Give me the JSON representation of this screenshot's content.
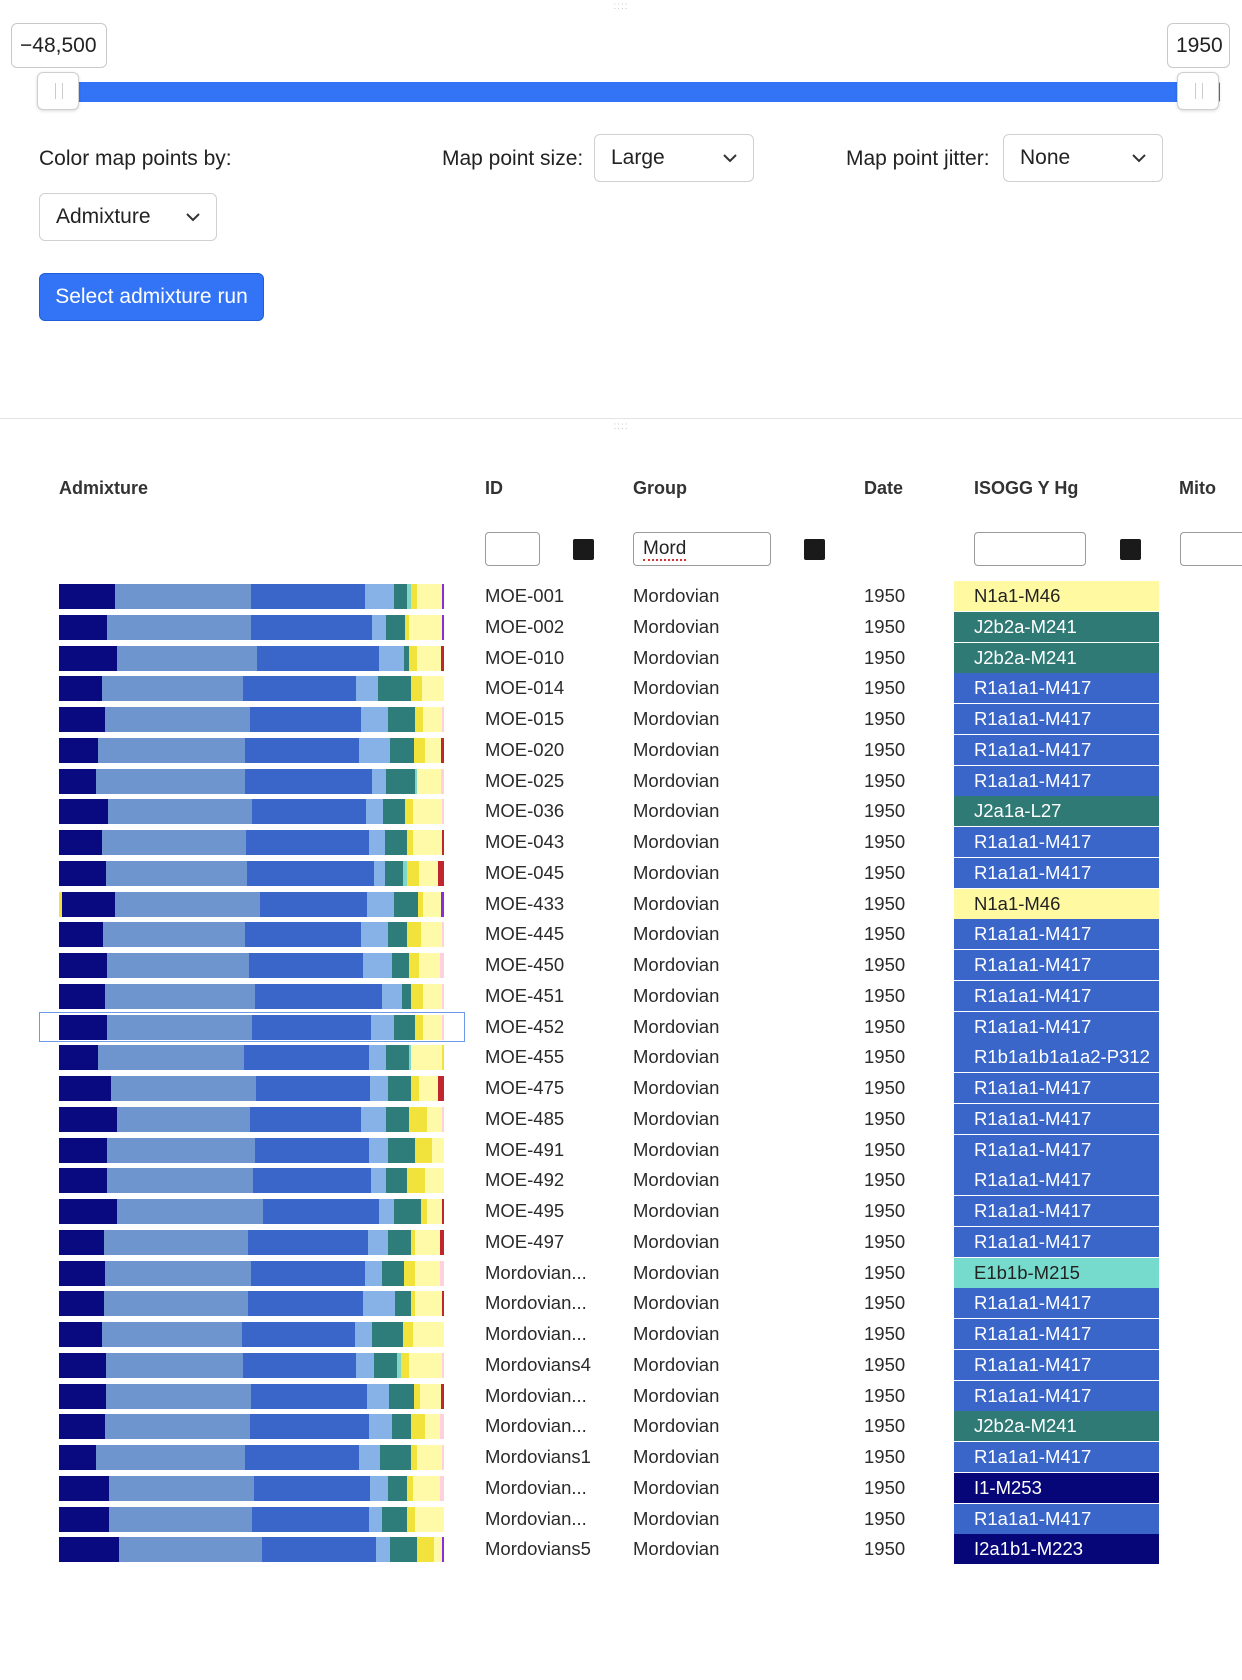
{
  "range": {
    "min_label": "−48,500",
    "max_label": "1950"
  },
  "controls": {
    "color_by_label": "Color map points by:",
    "color_by_value": "Admixture",
    "point_size_label": "Map point size:",
    "point_size_value": "Large",
    "jitter_label": "Map point jitter:",
    "jitter_value": "None",
    "admix_button": "Select admixture run"
  },
  "table": {
    "headers": {
      "admixture": "Admixture",
      "id": "ID",
      "group": "Group",
      "date": "Date",
      "ysog": "ISOGG Y Hg",
      "mito": "Mito"
    },
    "filters": {
      "id": "",
      "group": "Mord",
      "ysog": "",
      "mito": ""
    },
    "colors": {
      "c1": "#0a0a80",
      "c2": "#6f95cf",
      "c3": "#3a66c9",
      "c4": "#86b2e7",
      "c5": "#2e7d7a",
      "c6": "#f2e33c",
      "c7": "#fffaa8",
      "c8": "#ffd1dc",
      "c9": "#c0262e",
      "c10": "#8a2be2",
      "c11": "#7fd6c8"
    },
    "hg_colors": {
      "N1a1-M46": "#fffaa2",
      "J2b2a-M241": "#2f7a74",
      "J2a1a-L27": "#2f7a74",
      "R1a1a1-M417": "#3a66c9",
      "R1b1a1b1a1a2-P312": "#3a66c9",
      "E1b1b-M215": "#76dbcd",
      "I1-M253": "#060678",
      "I2a1b1-M223": "#060678"
    },
    "rows": [
      {
        "id": "MOE-001",
        "group": "Mordovian",
        "date": "1950",
        "hg": "N1a1-M46"
      },
      {
        "id": "MOE-002",
        "group": "Mordovian",
        "date": "1950",
        "hg": "J2b2a-M241"
      },
      {
        "id": "MOE-010",
        "group": "Mordovian",
        "date": "1950",
        "hg": "J2b2a-M241"
      },
      {
        "id": "MOE-014",
        "group": "Mordovian",
        "date": "1950",
        "hg": "R1a1a1-M417"
      },
      {
        "id": "MOE-015",
        "group": "Mordovian",
        "date": "1950",
        "hg": "R1a1a1-M417"
      },
      {
        "id": "MOE-020",
        "group": "Mordovian",
        "date": "1950",
        "hg": "R1a1a1-M417"
      },
      {
        "id": "MOE-025",
        "group": "Mordovian",
        "date": "1950",
        "hg": "R1a1a1-M417"
      },
      {
        "id": "MOE-036",
        "group": "Mordovian",
        "date": "1950",
        "hg": "J2a1a-L27"
      },
      {
        "id": "MOE-043",
        "group": "Mordovian",
        "date": "1950",
        "hg": "R1a1a1-M417"
      },
      {
        "id": "MOE-045",
        "group": "Mordovian",
        "date": "1950",
        "hg": "R1a1a1-M417"
      },
      {
        "id": "MOE-433",
        "group": "Mordovian",
        "date": "1950",
        "hg": "N1a1-M46"
      },
      {
        "id": "MOE-445",
        "group": "Mordovian",
        "date": "1950",
        "hg": "R1a1a1-M417"
      },
      {
        "id": "MOE-450",
        "group": "Mordovian",
        "date": "1950",
        "hg": "R1a1a1-M417"
      },
      {
        "id": "MOE-451",
        "group": "Mordovian",
        "date": "1950",
        "hg": "R1a1a1-M417"
      },
      {
        "id": "MOE-452",
        "group": "Mordovian",
        "date": "1950",
        "hg": "R1a1a1-M417"
      },
      {
        "id": "MOE-455",
        "group": "Mordovian",
        "date": "1950",
        "hg": "R1b1a1b1a1a2-P312"
      },
      {
        "id": "MOE-475",
        "group": "Mordovian",
        "date": "1950",
        "hg": "R1a1a1-M417"
      },
      {
        "id": "MOE-485",
        "group": "Mordovian",
        "date": "1950",
        "hg": "R1a1a1-M417"
      },
      {
        "id": "MOE-491",
        "group": "Mordovian",
        "date": "1950",
        "hg": "R1a1a1-M417"
      },
      {
        "id": "MOE-492",
        "group": "Mordovian",
        "date": "1950",
        "hg": "R1a1a1-M417"
      },
      {
        "id": "MOE-495",
        "group": "Mordovian",
        "date": "1950",
        "hg": "R1a1a1-M417"
      },
      {
        "id": "MOE-497",
        "group": "Mordovian",
        "date": "1950",
        "hg": "R1a1a1-M417"
      },
      {
        "id": "Mordovian...",
        "group": "Mordovian",
        "date": "1950",
        "hg": "E1b1b-M215"
      },
      {
        "id": "Mordovian...",
        "group": "Mordovian",
        "date": "1950",
        "hg": "R1a1a1-M417"
      },
      {
        "id": "Mordovian...",
        "group": "Mordovian",
        "date": "1950",
        "hg": "R1a1a1-M417"
      },
      {
        "id": "Mordovians4",
        "group": "Mordovian",
        "date": "1950",
        "hg": "R1a1a1-M417"
      },
      {
        "id": "Mordovian...",
        "group": "Mordovian",
        "date": "1950",
        "hg": "R1a1a1-M417"
      },
      {
        "id": "Mordovian...",
        "group": "Mordovian",
        "date": "1950",
        "hg": "J2b2a-M241"
      },
      {
        "id": "Mordovians1",
        "group": "Mordovian",
        "date": "1950",
        "hg": "R1a1a1-M417"
      },
      {
        "id": "Mordovian...",
        "group": "Mordovian",
        "date": "1950",
        "hg": "I1-M253"
      },
      {
        "id": "Mordovian...",
        "group": "Mordovian",
        "date": "1950",
        "hg": "R1a1a1-M417"
      },
      {
        "id": "Mordovians5",
        "group": "Mordovian",
        "date": "1950",
        "hg": "I2a1b1-M223"
      }
    ],
    "admixture": [
      [
        [
          14.5,
          "c1"
        ],
        [
          35,
          "c2"
        ],
        [
          29.5,
          "c3"
        ],
        [
          7.5,
          "c4"
        ],
        [
          3.5,
          "c5"
        ],
        [
          1,
          "c11"
        ],
        [
          1.5,
          "c6"
        ],
        [
          6.5,
          "c7"
        ],
        [
          0.5,
          "c10"
        ]
      ],
      [
        [
          12.5,
          "c1"
        ],
        [
          37,
          "c2"
        ],
        [
          31.5,
          "c3"
        ],
        [
          3.5,
          "c4"
        ],
        [
          5,
          "c5"
        ],
        [
          1,
          "c6"
        ],
        [
          8.5,
          "c7"
        ],
        [
          0.5,
          "c10"
        ]
      ],
      [
        [
          13.5,
          "c1"
        ],
        [
          33,
          "c2"
        ],
        [
          28.5,
          "c3"
        ],
        [
          6,
          "c4"
        ],
        [
          1,
          "c5"
        ],
        [
          2,
          "c6"
        ],
        [
          5.5,
          "c7"
        ],
        [
          0.8,
          "c9"
        ]
      ],
      [
        [
          11,
          "c1"
        ],
        [
          36,
          "c2"
        ],
        [
          29,
          "c3"
        ],
        [
          5.5,
          "c4"
        ],
        [
          8.5,
          "c5"
        ],
        [
          3,
          "c6"
        ],
        [
          5.5,
          "c7"
        ]
      ],
      [
        [
          12,
          "c1"
        ],
        [
          37.5,
          "c2"
        ],
        [
          29,
          "c3"
        ],
        [
          7,
          "c4"
        ],
        [
          7,
          "c5"
        ],
        [
          2,
          "c6"
        ],
        [
          5,
          "c7"
        ],
        [
          0.5,
          "c8"
        ]
      ],
      [
        [
          10,
          "c1"
        ],
        [
          38,
          "c2"
        ],
        [
          29.5,
          "c3"
        ],
        [
          8,
          "c4"
        ],
        [
          6,
          "c5"
        ],
        [
          3,
          "c6"
        ],
        [
          4,
          "c7"
        ],
        [
          0.8,
          "c9"
        ]
      ],
      [
        [
          9.5,
          "c1"
        ],
        [
          38,
          "c2"
        ],
        [
          32.5,
          "c3"
        ],
        [
          3.5,
          "c4"
        ],
        [
          7.5,
          "c5"
        ],
        [
          0.5,
          "c11"
        ],
        [
          6,
          "c7"
        ],
        [
          0.8,
          "c8"
        ]
      ],
      [
        [
          12.5,
          "c1"
        ],
        [
          37,
          "c2"
        ],
        [
          29,
          "c3"
        ],
        [
          4.5,
          "c4"
        ],
        [
          5.5,
          "c5"
        ],
        [
          2,
          "c6"
        ],
        [
          7.5,
          "c7"
        ],
        [
          0.5,
          "c8"
        ]
      ],
      [
        [
          11,
          "c1"
        ],
        [
          36.5,
          "c2"
        ],
        [
          31.5,
          "c3"
        ],
        [
          4,
          "c4"
        ],
        [
          5.5,
          "c5"
        ],
        [
          1.5,
          "c6"
        ],
        [
          7.5,
          "c7"
        ],
        [
          0.5,
          "c9"
        ]
      ],
      [
        [
          12,
          "c1"
        ],
        [
          36,
          "c2"
        ],
        [
          32.5,
          "c3"
        ],
        [
          3,
          "c4"
        ],
        [
          4.5,
          "c5"
        ],
        [
          1,
          "c11"
        ],
        [
          3,
          "c6"
        ],
        [
          5,
          "c7"
        ],
        [
          1.5,
          "c9"
        ]
      ],
      [
        [
          0.8,
          "c6"
        ],
        [
          13.5,
          "c1"
        ],
        [
          37.5,
          "c2"
        ],
        [
          27.5,
          "c3"
        ],
        [
          7,
          "c4"
        ],
        [
          6,
          "c5"
        ],
        [
          1.5,
          "c6"
        ],
        [
          4.5,
          "c7"
        ],
        [
          0.8,
          "c10"
        ]
      ],
      [
        [
          11.5,
          "c1"
        ],
        [
          36.5,
          "c2"
        ],
        [
          30,
          "c3"
        ],
        [
          7,
          "c4"
        ],
        [
          5,
          "c5"
        ],
        [
          3.5,
          "c6"
        ],
        [
          5.5,
          "c7"
        ],
        [
          0.5,
          "c8"
        ]
      ],
      [
        [
          12.5,
          "c1"
        ],
        [
          36.5,
          "c2"
        ],
        [
          29.5,
          "c3"
        ],
        [
          7.5,
          "c4"
        ],
        [
          4.5,
          "c5"
        ],
        [
          2.5,
          "c6"
        ],
        [
          5.5,
          "c7"
        ],
        [
          1,
          "c8"
        ]
      ],
      [
        [
          12,
          "c1"
        ],
        [
          39,
          "c2"
        ],
        [
          33,
          "c3"
        ],
        [
          5,
          "c4"
        ],
        [
          2.5,
          "c5"
        ],
        [
          3,
          "c6"
        ],
        [
          5,
          "c7"
        ],
        [
          0.5,
          "c8"
        ]
      ],
      [
        [
          12.5,
          "c1"
        ],
        [
          37.5,
          "c2"
        ],
        [
          31,
          "c3"
        ],
        [
          6,
          "c4"
        ],
        [
          5.5,
          "c5"
        ],
        [
          2,
          "c6"
        ],
        [
          5,
          "c7"
        ],
        [
          0.5,
          "c8"
        ]
      ],
      [
        [
          10,
          "c1"
        ],
        [
          38,
          "c2"
        ],
        [
          32.5,
          "c3"
        ],
        [
          4.5,
          "c4"
        ],
        [
          6,
          "c5"
        ],
        [
          0.5,
          "c11"
        ],
        [
          8,
          "c7"
        ],
        [
          0.5,
          "c6"
        ]
      ],
      [
        [
          13.5,
          "c1"
        ],
        [
          37.5,
          "c2"
        ],
        [
          29.5,
          "c3"
        ],
        [
          4.5,
          "c4"
        ],
        [
          6,
          "c5"
        ],
        [
          2,
          "c6"
        ],
        [
          5,
          "c7"
        ],
        [
          1.5,
          "c9"
        ]
      ],
      [
        [
          15,
          "c1"
        ],
        [
          34.5,
          "c2"
        ],
        [
          29,
          "c3"
        ],
        [
          6.5,
          "c4"
        ],
        [
          6,
          "c5"
        ],
        [
          4.5,
          "c6"
        ],
        [
          4,
          "c7"
        ],
        [
          0.5,
          "c8"
        ]
      ],
      [
        [
          12.5,
          "c1"
        ],
        [
          38.5,
          "c2"
        ],
        [
          29.5,
          "c3"
        ],
        [
          5,
          "c4"
        ],
        [
          7,
          "c5"
        ],
        [
          4.5,
          "c6"
        ],
        [
          3,
          "c7"
        ]
      ],
      [
        [
          12.5,
          "c1"
        ],
        [
          38,
          "c2"
        ],
        [
          30.5,
          "c3"
        ],
        [
          4,
          "c4"
        ],
        [
          5.5,
          "c5"
        ],
        [
          4.5,
          "c6"
        ],
        [
          5,
          "c7"
        ]
      ],
      [
        [
          15,
          "c1"
        ],
        [
          38,
          "c2"
        ],
        [
          30,
          "c3"
        ],
        [
          4,
          "c4"
        ],
        [
          7,
          "c5"
        ],
        [
          1.5,
          "c6"
        ],
        [
          4,
          "c7"
        ],
        [
          0.5,
          "c9"
        ]
      ],
      [
        [
          11.5,
          "c1"
        ],
        [
          37,
          "c2"
        ],
        [
          31,
          "c3"
        ],
        [
          5,
          "c4"
        ],
        [
          6,
          "c5"
        ],
        [
          1,
          "c6"
        ],
        [
          6.5,
          "c7"
        ],
        [
          1,
          "c9"
        ]
      ],
      [
        [
          12,
          "c1"
        ],
        [
          38,
          "c2"
        ],
        [
          29.5,
          "c3"
        ],
        [
          4.5,
          "c4"
        ],
        [
          5.5,
          "c5"
        ],
        [
          3,
          "c6"
        ],
        [
          6.5,
          "c7"
        ],
        [
          1,
          "c8"
        ]
      ],
      [
        [
          11.5,
          "c1"
        ],
        [
          36.5,
          "c2"
        ],
        [
          29.5,
          "c3"
        ],
        [
          8,
          "c4"
        ],
        [
          4,
          "c5"
        ],
        [
          1,
          "c6"
        ],
        [
          7,
          "c7"
        ],
        [
          0.5,
          "c9"
        ]
      ],
      [
        [
          11,
          "c1"
        ],
        [
          36,
          "c2"
        ],
        [
          29,
          "c3"
        ],
        [
          4.5,
          "c4"
        ],
        [
          8,
          "c5"
        ],
        [
          2.5,
          "c6"
        ],
        [
          8,
          "c7"
        ]
      ],
      [
        [
          12,
          "c1"
        ],
        [
          35,
          "c2"
        ],
        [
          29,
          "c3"
        ],
        [
          4.5,
          "c4"
        ],
        [
          6,
          "c5"
        ],
        [
          1,
          "c11"
        ],
        [
          2,
          "c6"
        ],
        [
          8.5,
          "c7"
        ],
        [
          0.5,
          "c8"
        ]
      ],
      [
        [
          12,
          "c1"
        ],
        [
          37.5,
          "c2"
        ],
        [
          30,
          "c3"
        ],
        [
          5.5,
          "c4"
        ],
        [
          6.5,
          "c5"
        ],
        [
          1.5,
          "c6"
        ],
        [
          5.5,
          "c7"
        ],
        [
          0.8,
          "c9"
        ]
      ],
      [
        [
          12,
          "c1"
        ],
        [
          37.5,
          "c2"
        ],
        [
          31,
          "c3"
        ],
        [
          6,
          "c4"
        ],
        [
          5,
          "c5"
        ],
        [
          3.5,
          "c6"
        ],
        [
          4,
          "c7"
        ],
        [
          1,
          "c8"
        ]
      ],
      [
        [
          9.5,
          "c1"
        ],
        [
          38.5,
          "c2"
        ],
        [
          29.5,
          "c3"
        ],
        [
          5.5,
          "c4"
        ],
        [
          8,
          "c5"
        ],
        [
          1.5,
          "c6"
        ],
        [
          6.5,
          "c7"
        ],
        [
          0.5,
          "c8"
        ]
      ],
      [
        [
          13,
          "c1"
        ],
        [
          37.5,
          "c2"
        ],
        [
          30,
          "c3"
        ],
        [
          4.5,
          "c4"
        ],
        [
          5,
          "c5"
        ],
        [
          1.5,
          "c6"
        ],
        [
          7,
          "c7"
        ],
        [
          1,
          "c8"
        ]
      ],
      [
        [
          13,
          "c1"
        ],
        [
          37,
          "c2"
        ],
        [
          30,
          "c3"
        ],
        [
          3.5,
          "c4"
        ],
        [
          6.5,
          "c5"
        ],
        [
          2,
          "c6"
        ],
        [
          7.5,
          "c7"
        ]
      ],
      [
        [
          15.5,
          "c1"
        ],
        [
          37,
          "c2"
        ],
        [
          29.5,
          "c3"
        ],
        [
          3.5,
          "c4"
        ],
        [
          7,
          "c5"
        ],
        [
          4.5,
          "c6"
        ],
        [
          2,
          "c7"
        ],
        [
          0.5,
          "c10"
        ]
      ]
    ]
  }
}
